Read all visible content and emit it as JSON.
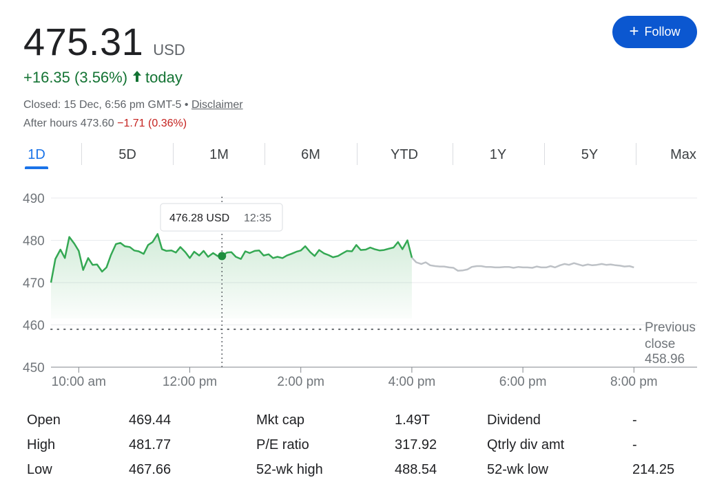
{
  "quote": {
    "price": "475.31",
    "currency": "USD",
    "change": "+16.35 (3.56%)",
    "change_suffix": "today",
    "closed_text": "Closed: 15 Dec, 6:56 pm GMT-5 •",
    "disclaimer": "Disclaimer",
    "after_hours_label": "After hours 473.60",
    "after_hours_change": "−1.71 (0.36%)"
  },
  "follow_label": "Follow",
  "tabs": [
    "1D",
    "5D",
    "1M",
    "6M",
    "YTD",
    "1Y",
    "5Y",
    "Max"
  ],
  "active_tab": "1D",
  "colors": {
    "up": "#137333",
    "down": "#c5221f",
    "accent": "#1a73e8",
    "line": "#34a853",
    "after_hours_line": "#bdc1c6"
  },
  "chart_data": {
    "type": "line",
    "title": "",
    "y_ticks": [
      490,
      480,
      470,
      460,
      450
    ],
    "ylim": [
      450,
      490
    ],
    "x_ticks": [
      {
        "label": "10:00 am",
        "hour": 10
      },
      {
        "label": "12:00 pm",
        "hour": 12
      },
      {
        "label": "2:00 pm",
        "hour": 14
      },
      {
        "label": "4:00 pm",
        "hour": 16
      },
      {
        "label": "6:00 pm",
        "hour": 18
      },
      {
        "label": "8:00 pm",
        "hour": 20
      }
    ],
    "xlim": [
      9.5,
      20.1
    ],
    "previous_close": {
      "label_line1": "Previous",
      "label_line2": "close",
      "value": "458.96",
      "y": 458.96
    },
    "tooltip": {
      "value": "476.28 USD",
      "time": "12:35",
      "x": 12.58,
      "y": 476.28
    },
    "series": [
      {
        "segment": "regular",
        "x": [
          9.5,
          9.58,
          9.67,
          9.75,
          9.83,
          9.92,
          10.0,
          10.08,
          10.17,
          10.25,
          10.33,
          10.42,
          10.5,
          10.58,
          10.67,
          10.75,
          10.83,
          10.92,
          11.0,
          11.08,
          11.17,
          11.25,
          11.33,
          11.42,
          11.5,
          11.58,
          11.67,
          11.75,
          11.83,
          11.92,
          12.0,
          12.08,
          12.17,
          12.25,
          12.33,
          12.42,
          12.5,
          12.58,
          12.67,
          12.75,
          12.83,
          12.92,
          13.0,
          13.08,
          13.17,
          13.25,
          13.33,
          13.42,
          13.5,
          13.58,
          13.67,
          13.75,
          13.83,
          13.92,
          14.0,
          14.08,
          14.17,
          14.25,
          14.33,
          14.42,
          14.5,
          14.58,
          14.67,
          14.75,
          14.83,
          14.92,
          15.0,
          15.08,
          15.17,
          15.25,
          15.33,
          15.42,
          15.5,
          15.58,
          15.67,
          15.75,
          15.83,
          15.92,
          16.0
        ],
        "y": [
          470.0,
          475.6,
          477.8,
          475.8,
          480.8,
          479.2,
          477.5,
          473.0,
          475.8,
          474.2,
          474.3,
          472.6,
          473.6,
          476.5,
          479.1,
          479.4,
          478.6,
          478.4,
          477.6,
          477.4,
          476.8,
          478.9,
          479.6,
          481.5,
          477.9,
          477.5,
          477.6,
          477.1,
          478.4,
          477.2,
          475.8,
          477.3,
          476.4,
          477.5,
          476.1,
          477.0,
          476.3,
          476.3,
          477.1,
          477.2,
          476.1,
          475.6,
          477.4,
          477.0,
          477.5,
          477.6,
          476.4,
          476.7,
          475.8,
          476.1,
          475.8,
          476.4,
          476.8,
          477.3,
          477.6,
          478.6,
          477.2,
          476.3,
          477.7,
          476.9,
          476.5,
          476.0,
          476.3,
          476.9,
          477.5,
          477.4,
          478.9,
          477.7,
          477.8,
          478.3,
          477.9,
          477.6,
          477.7,
          478.0,
          478.3,
          479.6,
          477.9,
          480.0,
          475.9
        ]
      },
      {
        "segment": "after_hours",
        "x": [
          16.0,
          16.08,
          16.17,
          16.25,
          16.33,
          16.42,
          16.5,
          16.58,
          16.67,
          16.75,
          16.83,
          16.92,
          17.0,
          17.08,
          17.17,
          17.25,
          17.33,
          17.42,
          17.5,
          17.58,
          17.67,
          17.75,
          17.83,
          17.92,
          18.0,
          18.08,
          18.17,
          18.25,
          18.33,
          18.42,
          18.5,
          18.58,
          18.67,
          18.75,
          18.83,
          18.92,
          19.0,
          19.08,
          19.17,
          19.25,
          19.33,
          19.42,
          19.5,
          19.58,
          19.67,
          19.75,
          19.83,
          19.92,
          20.0
        ],
        "y": [
          475.9,
          474.8,
          474.4,
          474.8,
          474.1,
          473.9,
          473.8,
          473.8,
          473.6,
          473.5,
          472.8,
          472.9,
          473.1,
          473.7,
          473.9,
          473.9,
          473.7,
          473.7,
          473.6,
          473.6,
          473.7,
          473.7,
          473.5,
          473.7,
          473.6,
          473.6,
          473.5,
          473.8,
          473.6,
          473.6,
          473.9,
          473.6,
          474.1,
          474.4,
          474.2,
          474.6,
          474.3,
          474.0,
          474.3,
          474.1,
          474.2,
          474.4,
          474.2,
          474.3,
          474.1,
          474.0,
          473.8,
          473.9,
          473.6
        ]
      }
    ],
    "grid": true
  },
  "stats": {
    "col1": [
      {
        "label": "Open",
        "value": "469.44"
      },
      {
        "label": "High",
        "value": "481.77"
      },
      {
        "label": "Low",
        "value": "467.66"
      }
    ],
    "col2": [
      {
        "label": "Mkt cap",
        "value": "1.49T"
      },
      {
        "label": "P/E ratio",
        "value": "317.92"
      },
      {
        "label": "52-wk high",
        "value": "488.54"
      }
    ],
    "col3": [
      {
        "label": "Dividend",
        "value": "-"
      },
      {
        "label": "Qtrly div amt",
        "value": "-"
      },
      {
        "label": "52-wk low",
        "value": "214.25"
      }
    ]
  }
}
